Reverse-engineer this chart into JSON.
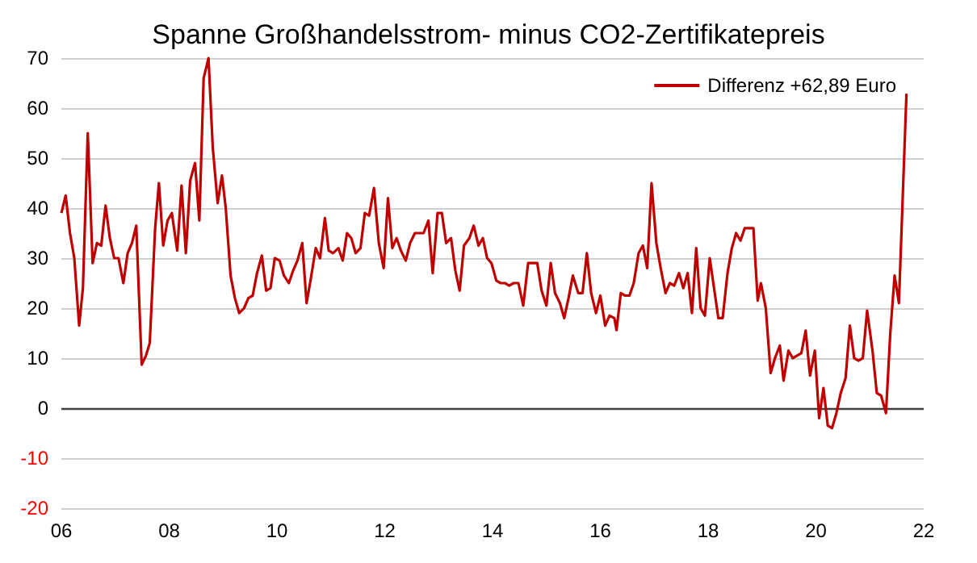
{
  "chart_data": {
    "type": "line",
    "title": "Spanne Großhandelsstrom- minus CO2-Zertifikatepreis",
    "xlim": [
      2006,
      2022
    ],
    "xticks": [
      {
        "value": 2006,
        "label": "06"
      },
      {
        "value": 2008,
        "label": "08"
      },
      {
        "value": 2010,
        "label": "10"
      },
      {
        "value": 2012,
        "label": "12"
      },
      {
        "value": 2014,
        "label": "14"
      },
      {
        "value": 2016,
        "label": "16"
      },
      {
        "value": 2018,
        "label": "18"
      },
      {
        "value": 2020,
        "label": "20"
      },
      {
        "value": 2022,
        "label": "22"
      }
    ],
    "ylim": [
      -20,
      70
    ],
    "yticks": [
      -20,
      -10,
      0,
      10,
      20,
      30,
      40,
      50,
      60,
      70
    ],
    "grid": "y",
    "legend": "top right",
    "marker": "none",
    "line_style": "solid",
    "ref_lines": [
      {
        "axis": "y",
        "value": 0,
        "label": null,
        "color": "#404040"
      }
    ],
    "series": [
      {
        "name": "Differenz +62,89 Euro",
        "color": "#c00000",
        "x": [
          2006.0,
          2006.08,
          2006.16,
          2006.24,
          2006.33,
          2006.4,
          2006.49,
          2006.58,
          2006.66,
          2006.74,
          2006.82,
          2006.9,
          2006.98,
          2007.06,
          2007.15,
          2007.23,
          2007.31,
          2007.39,
          2007.49,
          2007.57,
          2007.64,
          2007.74,
          2007.81,
          2007.89,
          2007.97,
          2008.05,
          2008.15,
          2008.23,
          2008.31,
          2008.39,
          2008.48,
          2008.56,
          2008.64,
          2008.73,
          2008.81,
          2008.9,
          2008.98,
          2009.05,
          2009.14,
          2009.22,
          2009.3,
          2009.39,
          2009.47,
          2009.55,
          2009.63,
          2009.72,
          2009.8,
          2009.88,
          2009.96,
          2010.05,
          2010.13,
          2010.22,
          2010.3,
          2010.38,
          2010.47,
          2010.55,
          2010.63,
          2010.72,
          2010.8,
          2010.89,
          2010.96,
          2011.04,
          2011.14,
          2011.22,
          2011.3,
          2011.38,
          2011.46,
          2011.55,
          2011.63,
          2011.71,
          2011.8,
          2011.89,
          2011.98,
          2012.06,
          2012.14,
          2012.22,
          2012.3,
          2012.39,
          2012.47,
          2012.56,
          2012.64,
          2012.72,
          2012.81,
          2012.89,
          2012.98,
          2013.06,
          2013.14,
          2013.23,
          2013.31,
          2013.39,
          2013.47,
          2013.57,
          2013.65,
          2013.74,
          2013.82,
          2013.9,
          2013.98,
          2014.07,
          2014.15,
          2014.23,
          2014.31,
          2014.39,
          2014.48,
          2014.57,
          2014.66,
          2014.74,
          2014.83,
          2014.91,
          2015.0,
          2015.08,
          2015.16,
          2015.25,
          2015.33,
          2015.41,
          2015.49,
          2015.59,
          2015.67,
          2015.75,
          2015.83,
          2015.92,
          2016.0,
          2016.09,
          2016.17,
          2016.26,
          2016.3,
          2016.38,
          2016.46,
          2016.54,
          2016.62,
          2016.71,
          2016.79,
          2016.87,
          2016.95,
          2017.04,
          2017.12,
          2017.21,
          2017.29,
          2017.37,
          2017.46,
          2017.54,
          2017.62,
          2017.7,
          2017.78,
          2017.86,
          2017.94,
          2018.03,
          2018.11,
          2018.19,
          2018.27,
          2018.36,
          2018.44,
          2018.52,
          2018.6,
          2018.68,
          2018.76,
          2018.84,
          2018.92,
          2018.98,
          2019.07,
          2019.16,
          2019.24,
          2019.33,
          2019.4,
          2019.49,
          2019.57,
          2019.65,
          2019.73,
          2019.81,
          2019.89,
          2019.98,
          2020.06,
          2020.14,
          2020.22,
          2020.3,
          2020.38,
          2020.46,
          2020.55,
          2020.63,
          2020.71,
          2020.79,
          2020.87,
          2020.95,
          2021.05,
          2021.13,
          2021.21,
          2021.3,
          2021.38,
          2021.46,
          2021.54,
          2021.68
        ],
        "values": [
          39,
          42.5,
          35,
          30,
          16.5,
          24,
          55,
          29,
          33,
          32.5,
          40.5,
          34,
          30,
          30,
          25,
          31,
          33,
          36.5,
          8.7,
          10.5,
          13,
          36,
          45,
          32.5,
          37.5,
          39,
          31.5,
          44.5,
          31,
          45.5,
          49,
          37.5,
          66,
          70,
          52,
          41,
          46.5,
          40,
          26.5,
          22,
          19,
          20,
          22,
          22.5,
          27,
          30.5,
          23.5,
          24,
          30,
          29.5,
          26.5,
          25,
          27.5,
          29.5,
          33,
          21,
          26,
          32,
          30,
          38,
          31.5,
          31,
          32,
          29.5,
          35,
          34,
          31,
          32,
          39,
          38.5,
          44,
          33,
          28,
          42,
          32,
          34,
          31.5,
          29.5,
          33,
          35,
          35,
          35,
          37.5,
          27,
          39,
          39,
          33,
          34,
          27.5,
          23.5,
          32.5,
          34,
          36.5,
          32.5,
          34,
          30,
          29,
          25.5,
          25,
          25,
          24.5,
          25,
          25,
          20.5,
          29,
          29,
          29,
          23.5,
          20.5,
          29,
          23,
          21,
          18,
          22,
          26.5,
          23,
          23,
          31,
          23,
          19,
          22.5,
          16.5,
          18.5,
          18,
          15.6,
          23,
          22.5,
          22.5,
          25,
          31,
          32.5,
          28,
          45,
          33,
          28,
          23,
          25,
          24.5,
          27,
          24,
          27,
          19,
          32,
          20,
          18.5,
          30,
          24,
          18,
          18,
          27,
          32,
          35,
          33.5,
          36,
          36,
          36,
          21.5,
          25,
          20,
          7,
          10,
          12.5,
          5.5,
          11.5,
          10,
          10.5,
          11,
          15.5,
          6.5,
          11.5,
          -2,
          4,
          -3.5,
          -4,
          -1,
          3,
          6,
          16.5,
          10,
          9.5,
          10,
          19.5,
          11.5,
          3,
          2.5,
          -1,
          15,
          26.5,
          21,
          62.89
        ]
      }
    ]
  }
}
